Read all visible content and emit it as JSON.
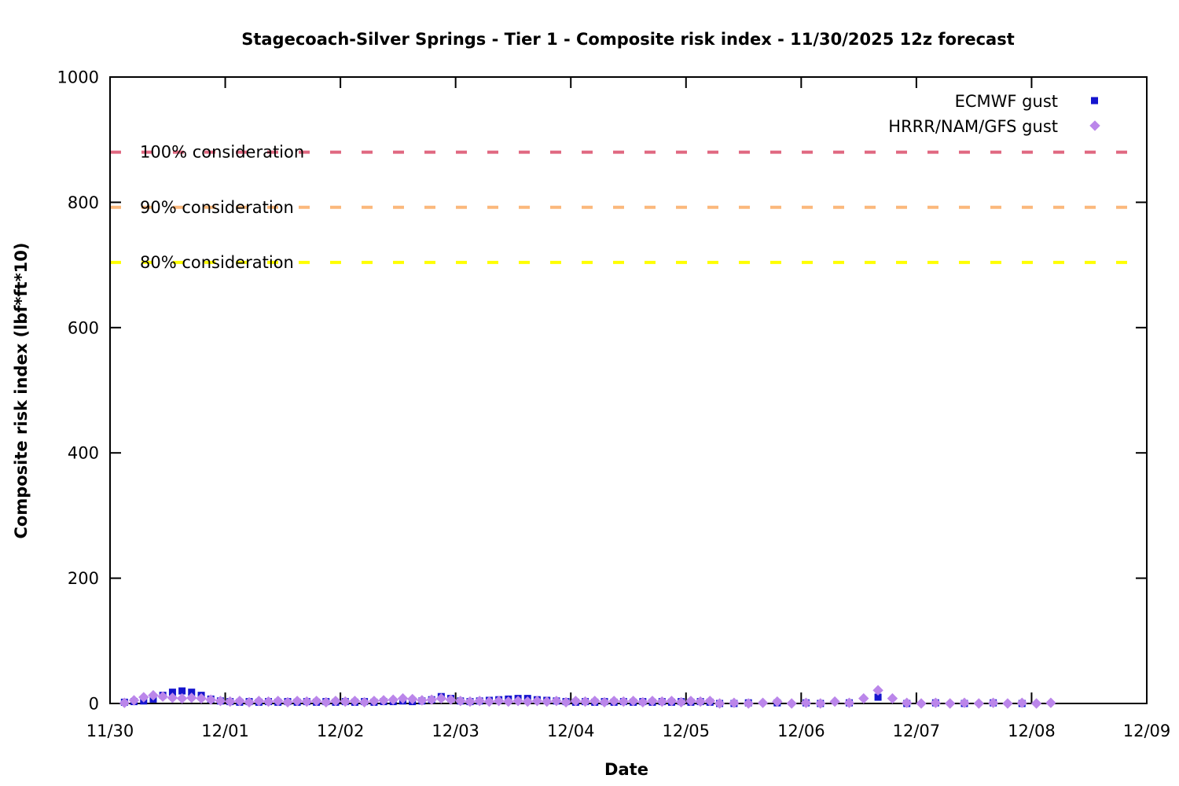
{
  "title": "Stagecoach-Silver Springs - Tier 1 - Composite risk index - 11/30/2025 12z forecast",
  "axes": {
    "x_label": "Date",
    "y_label": "Composite risk index (lbf*ft*10)"
  },
  "chart_data": {
    "type": "scatter",
    "title": "Stagecoach-Silver Springs - Tier 1 - Composite risk index - 11/30/2025 12z forecast",
    "xlabel": "Date",
    "ylabel": "Composite risk index (lbf*ft*10)",
    "x_unit": "days after 11/30",
    "xlim": [
      0,
      9
    ],
    "ylim": [
      0,
      1000
    ],
    "grid": false,
    "legend_position": "top-right-inside",
    "x_ticks": [
      {
        "pos": 0,
        "label": "11/30"
      },
      {
        "pos": 1,
        "label": "12/01"
      },
      {
        "pos": 2,
        "label": "12/02"
      },
      {
        "pos": 3,
        "label": "12/03"
      },
      {
        "pos": 4,
        "label": "12/04"
      },
      {
        "pos": 5,
        "label": "12/05"
      },
      {
        "pos": 6,
        "label": "12/06"
      },
      {
        "pos": 7,
        "label": "12/07"
      },
      {
        "pos": 8,
        "label": "12/08"
      },
      {
        "pos": 9,
        "label": "12/09"
      }
    ],
    "y_ticks": [
      {
        "value": 0,
        "label": "0"
      },
      {
        "value": 200,
        "label": "200"
      },
      {
        "value": 400,
        "label": "400"
      },
      {
        "value": 600,
        "label": "600"
      },
      {
        "value": 800,
        "label": "800"
      },
      {
        "value": 1000,
        "label": "1000"
      }
    ],
    "thresholds": [
      {
        "label": "100% consideration",
        "value": 880,
        "color": "#E06880",
        "style": "dashed"
      },
      {
        "label": "90% consideration",
        "value": 792,
        "color": "#FBB87C",
        "style": "dashed"
      },
      {
        "label": "80% consideration",
        "value": 704,
        "color": "#FFFF00",
        "style": "dashed"
      }
    ],
    "series": [
      {
        "name": "ECMWF gust",
        "marker": "square",
        "color": "#1414CE",
        "points": [
          [
            0.125,
            2
          ],
          [
            0.208,
            3
          ],
          [
            0.292,
            4
          ],
          [
            0.375,
            7
          ],
          [
            0.458,
            13
          ],
          [
            0.542,
            18
          ],
          [
            0.625,
            20
          ],
          [
            0.708,
            18
          ],
          [
            0.792,
            13
          ],
          [
            0.875,
            7
          ],
          [
            0.958,
            4
          ],
          [
            1.042,
            3
          ],
          [
            1.125,
            2
          ],
          [
            1.208,
            3
          ],
          [
            1.292,
            2
          ],
          [
            1.375,
            3
          ],
          [
            1.458,
            2
          ],
          [
            1.542,
            3
          ],
          [
            1.625,
            2
          ],
          [
            1.708,
            3
          ],
          [
            1.792,
            2
          ],
          [
            1.875,
            3
          ],
          [
            1.958,
            2
          ],
          [
            2.042,
            3
          ],
          [
            2.125,
            2
          ],
          [
            2.208,
            3
          ],
          [
            2.292,
            2
          ],
          [
            2.375,
            3
          ],
          [
            2.458,
            3
          ],
          [
            2.542,
            4
          ],
          [
            2.625,
            3
          ],
          [
            2.708,
            4
          ],
          [
            2.792,
            6
          ],
          [
            2.875,
            11
          ],
          [
            2.958,
            8
          ],
          [
            3.042,
            4
          ],
          [
            3.125,
            3
          ],
          [
            3.208,
            4
          ],
          [
            3.292,
            5
          ],
          [
            3.375,
            6
          ],
          [
            3.458,
            7
          ],
          [
            3.542,
            8
          ],
          [
            3.625,
            8
          ],
          [
            3.708,
            6
          ],
          [
            3.792,
            5
          ],
          [
            3.875,
            4
          ],
          [
            3.958,
            3
          ],
          [
            4.042,
            2
          ],
          [
            4.125,
            3
          ],
          [
            4.208,
            2
          ],
          [
            4.292,
            3
          ],
          [
            4.375,
            2
          ],
          [
            4.458,
            3
          ],
          [
            4.542,
            2
          ],
          [
            4.625,
            3
          ],
          [
            4.708,
            2
          ],
          [
            4.792,
            3
          ],
          [
            4.875,
            2
          ],
          [
            4.958,
            3
          ],
          [
            5.042,
            2
          ],
          [
            5.125,
            3
          ],
          [
            5.208,
            2
          ],
          [
            5.292,
            0
          ],
          [
            5.417,
            0
          ],
          [
            5.542,
            1
          ],
          [
            5.792,
            1
          ],
          [
            6.042,
            1
          ],
          [
            6.167,
            0
          ],
          [
            6.417,
            1
          ],
          [
            6.667,
            10
          ],
          [
            6.917,
            0
          ],
          [
            7.167,
            1
          ],
          [
            7.417,
            0
          ],
          [
            7.667,
            1
          ],
          [
            7.917,
            0
          ]
        ]
      },
      {
        "name": "HRRR/NAM/GFS gust",
        "marker": "diamond",
        "color": "#BB86EA",
        "points": [
          [
            0.125,
            1
          ],
          [
            0.208,
            5
          ],
          [
            0.292,
            10
          ],
          [
            0.375,
            13
          ],
          [
            0.458,
            11
          ],
          [
            0.542,
            9
          ],
          [
            0.625,
            8
          ],
          [
            0.708,
            9
          ],
          [
            0.792,
            8
          ],
          [
            0.875,
            6
          ],
          [
            0.958,
            4
          ],
          [
            1.042,
            3
          ],
          [
            1.125,
            4
          ],
          [
            1.208,
            2
          ],
          [
            1.292,
            4
          ],
          [
            1.375,
            3
          ],
          [
            1.458,
            4
          ],
          [
            1.542,
            2
          ],
          [
            1.625,
            4
          ],
          [
            1.708,
            3
          ],
          [
            1.792,
            4
          ],
          [
            1.875,
            2
          ],
          [
            1.958,
            4
          ],
          [
            2.042,
            3
          ],
          [
            2.125,
            4
          ],
          [
            2.208,
            2
          ],
          [
            2.292,
            4
          ],
          [
            2.375,
            5
          ],
          [
            2.458,
            6
          ],
          [
            2.542,
            8
          ],
          [
            2.625,
            7
          ],
          [
            2.708,
            5
          ],
          [
            2.792,
            6
          ],
          [
            2.875,
            8
          ],
          [
            2.958,
            6
          ],
          [
            3.042,
            4
          ],
          [
            3.125,
            3
          ],
          [
            3.208,
            4
          ],
          [
            3.292,
            3
          ],
          [
            3.375,
            4
          ],
          [
            3.458,
            3
          ],
          [
            3.542,
            4
          ],
          [
            3.625,
            3
          ],
          [
            3.708,
            4
          ],
          [
            3.792,
            3
          ],
          [
            3.875,
            4
          ],
          [
            3.958,
            2
          ],
          [
            4.042,
            4
          ],
          [
            4.125,
            3
          ],
          [
            4.208,
            4
          ],
          [
            4.292,
            2
          ],
          [
            4.375,
            4
          ],
          [
            4.458,
            3
          ],
          [
            4.542,
            4
          ],
          [
            4.625,
            2
          ],
          [
            4.708,
            4
          ],
          [
            4.792,
            3
          ],
          [
            4.875,
            4
          ],
          [
            4.958,
            2
          ],
          [
            5.042,
            4
          ],
          [
            5.125,
            3
          ],
          [
            5.208,
            4
          ],
          [
            5.292,
            0
          ],
          [
            5.417,
            1
          ],
          [
            5.542,
            0
          ],
          [
            5.667,
            1
          ],
          [
            5.792,
            3
          ],
          [
            5.917,
            0
          ],
          [
            6.042,
            1
          ],
          [
            6.167,
            0
          ],
          [
            6.292,
            3
          ],
          [
            6.417,
            1
          ],
          [
            6.542,
            8
          ],
          [
            6.667,
            21
          ],
          [
            6.792,
            8
          ],
          [
            6.917,
            1
          ],
          [
            7.042,
            0
          ],
          [
            7.167,
            1
          ],
          [
            7.292,
            0
          ],
          [
            7.417,
            1
          ],
          [
            7.542,
            0
          ],
          [
            7.667,
            1
          ],
          [
            7.792,
            0
          ],
          [
            7.917,
            1
          ],
          [
            8.042,
            0
          ],
          [
            8.167,
            1
          ]
        ]
      }
    ]
  }
}
